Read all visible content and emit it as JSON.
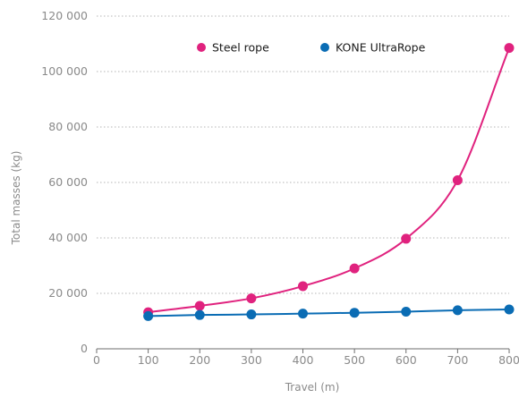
{
  "chart_data": {
    "type": "line",
    "title": "",
    "xlabel": "Travel (m)",
    "ylabel": "Total masses (kg)",
    "x": [
      100,
      200,
      300,
      400,
      500,
      600,
      700,
      800
    ],
    "xlim": [
      0,
      800
    ],
    "xticks": [
      0,
      100,
      200,
      300,
      400,
      500,
      600,
      700,
      800
    ],
    "xtick_labels": [
      "0",
      "100",
      "200",
      "300",
      "400",
      "500",
      "600",
      "700",
      "800"
    ],
    "ylim": [
      0,
      120000
    ],
    "yticks": [
      0,
      20000,
      40000,
      60000,
      80000,
      100000,
      120000
    ],
    "ytick_labels": [
      "0",
      "20 000",
      "40 000",
      "60 000",
      "80 000",
      "100 000",
      "120 000"
    ],
    "grid": "horizontal dotted",
    "legend_position": "top",
    "series": [
      {
        "name": "Steel rope",
        "color": "#e0227e",
        "values": [
          13200,
          15500,
          18200,
          22600,
          29000,
          39700,
          60800,
          108500
        ]
      },
      {
        "name": "KONE UltraRope",
        "color": "#0a6cb4",
        "values": [
          11800,
          12200,
          12400,
          12700,
          13000,
          13400,
          13900,
          14200
        ]
      }
    ]
  }
}
